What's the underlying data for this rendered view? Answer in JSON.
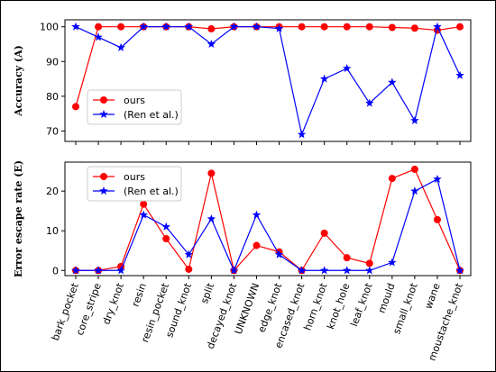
{
  "chart_data": [
    {
      "type": "line",
      "title": "",
      "xlabel": "",
      "ylabel": "Accuracy (A)",
      "ylim": [
        67,
        102
      ],
      "yticks": [
        70,
        80,
        90,
        100
      ],
      "grid": false,
      "legend": "center-left",
      "categories": [
        "bark_pocket",
        "core_stripe",
        "dry_knot",
        "resin",
        "resin_pocket",
        "sound_knot",
        "split",
        "decayed_knot",
        "UNKNOWN",
        "edge_knot",
        "encased_knot",
        "horn_knot",
        "knot_hole",
        "leaf_knot",
        "mould",
        "small_knot",
        "wane",
        "moustache_knot"
      ],
      "series": [
        {
          "name": "ours",
          "color": "#ff0000",
          "marker": "circle",
          "values": [
            77,
            100,
            100,
            100,
            100,
            100,
            99.4,
            100,
            100,
            100,
            100,
            100,
            100,
            100,
            99.8,
            99.6,
            99,
            100
          ]
        },
        {
          "name": "(Ren et al.)",
          "color": "#0000ff",
          "marker": "star",
          "values": [
            100,
            97,
            94,
            100,
            100,
            100,
            95,
            100,
            100,
            99.5,
            69,
            85,
            88,
            78,
            84,
            73,
            100,
            86
          ]
        }
      ]
    },
    {
      "type": "line",
      "title": "",
      "xlabel": "",
      "ylabel": "Error escape rate (E)",
      "ylim": [
        -1.3,
        27.3
      ],
      "yticks": [
        0,
        10,
        20
      ],
      "grid": false,
      "legend": "top-left",
      "categories": [
        "bark_pocket",
        "core_stripe",
        "dry_knot",
        "resin",
        "resin_pocket",
        "sound_knot",
        "split",
        "decayed_knot",
        "UNKNOWN",
        "edge_knot",
        "encased_knot",
        "horn_knot",
        "knot_hole",
        "leaf_knot",
        "mould",
        "small_knot",
        "wane",
        "moustache_knot"
      ],
      "series": [
        {
          "name": "ours",
          "color": "#ff0000",
          "marker": "circle",
          "values": [
            0,
            0,
            1,
            16.7,
            8,
            0.3,
            24.5,
            0,
            6.3,
            4.7,
            0,
            9.4,
            3.2,
            1.8,
            23.2,
            25.5,
            12.8,
            0
          ]
        },
        {
          "name": "(Ren et al.)",
          "color": "#0000ff",
          "marker": "star",
          "values": [
            0,
            0,
            0,
            14,
            11,
            4,
            13,
            0,
            14,
            4,
            0,
            0,
            0,
            0,
            2,
            20,
            23,
            0
          ]
        }
      ]
    }
  ]
}
